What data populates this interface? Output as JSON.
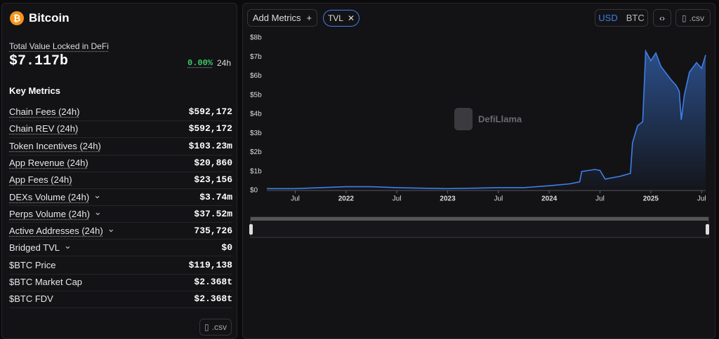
{
  "header": {
    "title": "Bitcoin",
    "tvl_label": "Total Value Locked in DeFi",
    "tvl_value": "$7.117b",
    "change": "0.00%",
    "change_period": "24h"
  },
  "metrics": {
    "title": "Key Metrics",
    "rows": [
      [
        "Chain Fees (24h)",
        "$592,172"
      ],
      [
        "Chain REV (24h)",
        "$592,172"
      ],
      [
        "Token Incentives (24h)",
        "$103.23m"
      ],
      [
        "App Revenue (24h)",
        "$20,860"
      ],
      [
        "App Fees (24h)",
        "$23,156"
      ],
      [
        "DEXs Volume (24h)",
        "$3.74m"
      ],
      [
        "Perps Volume (24h)",
        "$37.52m"
      ],
      [
        "Active Addresses (24h)",
        "735,726"
      ],
      [
        "Bridged TVL",
        "$0"
      ],
      [
        "$BTC Price",
        "$119,138"
      ],
      [
        "$BTC Market Cap",
        "$2.368t"
      ],
      [
        "$BTC FDV",
        "$2.368t"
      ]
    ],
    "csv": ".csv"
  },
  "toolbar": {
    "add_metrics": "Add Metrics",
    "tvl": "TVL",
    "usd": "USD",
    "btc": "BTC",
    "csv": ".csv"
  },
  "watermark": "DefiLlama",
  "chart": {
    "type": "area",
    "color": "#3f7fe8",
    "x": [
      2021.22,
      2021.5,
      2021.75,
      2022.0,
      2022.25,
      2022.5,
      2022.75,
      2023.0,
      2023.25,
      2023.5,
      2023.75,
      2024.0,
      2024.2,
      2024.3,
      2024.32,
      2024.45,
      2024.5,
      2024.55,
      2024.7,
      2024.8,
      2024.82,
      2024.87,
      2024.92,
      2024.95,
      2025.0,
      2025.05,
      2025.1,
      2025.2,
      2025.25,
      2025.28,
      2025.3,
      2025.33,
      2025.38,
      2025.45,
      2025.5,
      2025.54
    ],
    "values": [
      0.1,
      0.1,
      0.15,
      0.2,
      0.2,
      0.15,
      0.12,
      0.1,
      0.12,
      0.15,
      0.15,
      0.25,
      0.35,
      0.45,
      1.0,
      1.1,
      1.05,
      0.6,
      0.75,
      0.9,
      2.5,
      3.4,
      3.6,
      7.3,
      6.8,
      7.2,
      6.5,
      5.8,
      5.5,
      5.2,
      3.7,
      5.0,
      6.2,
      6.7,
      6.4,
      7.1
    ],
    "xlim": [
      2021.22,
      2025.54
    ],
    "xticks": [
      {
        "value": 2021.5,
        "label": "Jul"
      },
      {
        "value": 2022.0,
        "label": "2022"
      },
      {
        "value": 2022.5,
        "label": "Jul"
      },
      {
        "value": 2023.0,
        "label": "2023"
      },
      {
        "value": 2023.5,
        "label": "Jul"
      },
      {
        "value": 2024.0,
        "label": "2024"
      },
      {
        "value": 2024.5,
        "label": "Jul"
      },
      {
        "value": 2025.0,
        "label": "2025"
      },
      {
        "value": 2025.5,
        "label": "Jul"
      }
    ],
    "ylim": [
      0,
      8
    ],
    "yticks": [
      {
        "value": 0,
        "label": "$0"
      },
      {
        "value": 1,
        "label": "$1b"
      },
      {
        "value": 2,
        "label": "$2b"
      },
      {
        "value": 3,
        "label": "$3b"
      },
      {
        "value": 4,
        "label": "$4b"
      },
      {
        "value": 5,
        "label": "$5b"
      },
      {
        "value": 6,
        "label": "$6b"
      },
      {
        "value": 7,
        "label": "$7b"
      },
      {
        "value": 8,
        "label": "$8b"
      }
    ]
  }
}
